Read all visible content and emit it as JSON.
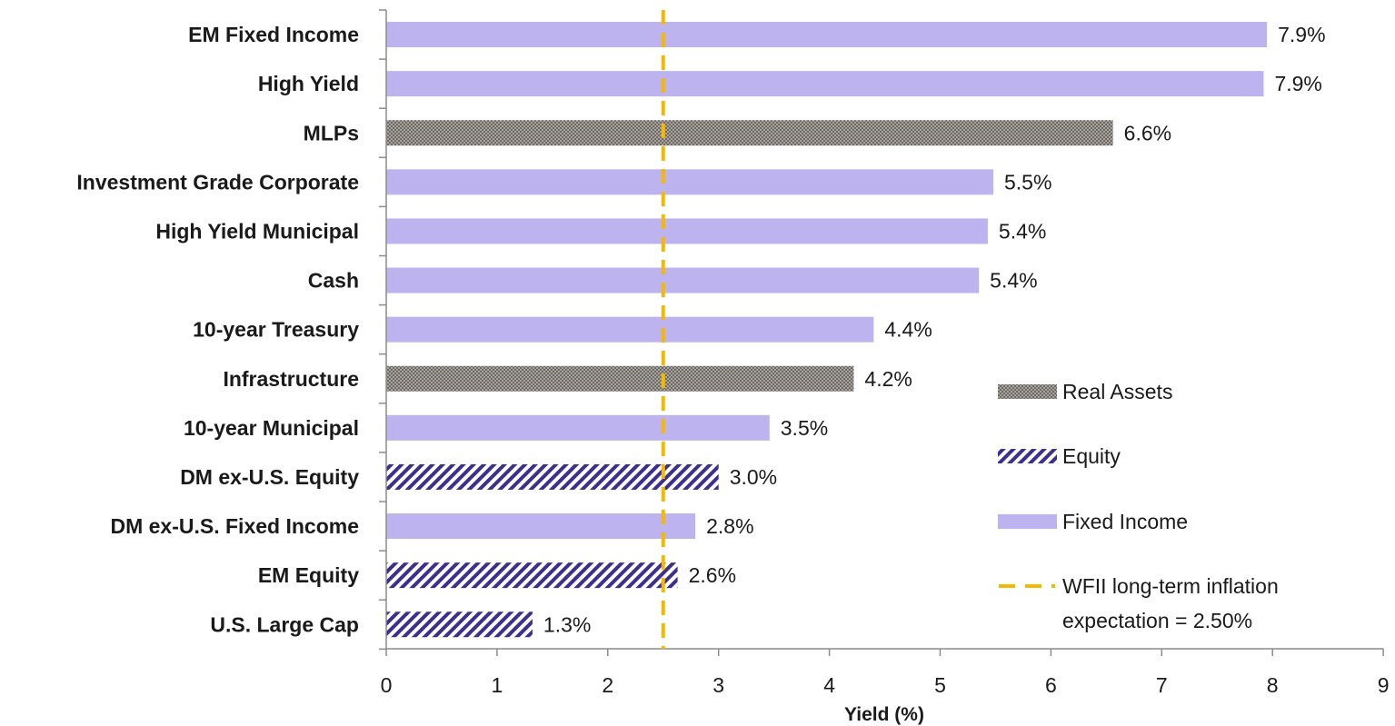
{
  "chart_data": {
    "type": "bar",
    "orientation": "horizontal",
    "xlabel": "Yield (%)",
    "xlim": [
      0,
      9
    ],
    "xticks": [
      0,
      1,
      2,
      3,
      4,
      5,
      6,
      7,
      8,
      9
    ],
    "grid": false,
    "legend_position": "bottom-right",
    "categories": [
      "EM Fixed Income",
      "High Yield",
      "MLPs",
      "Investment Grade Corporate",
      "High Yield Municipal",
      "Cash",
      "10-year Treasury",
      "Infrastructure",
      "10-year Municipal",
      "DM ex-U.S. Equity",
      "DM ex-U.S. Fixed Income",
      "EM Equity",
      "U.S. Large Cap"
    ],
    "values": [
      7.95,
      7.92,
      6.56,
      5.48,
      5.43,
      5.35,
      4.4,
      4.22,
      3.46,
      3.0,
      2.79,
      2.63,
      1.32
    ],
    "data_labels": [
      "7.9%",
      "7.9%",
      "6.6%",
      "5.5%",
      "5.4%",
      "5.4%",
      "4.4%",
      "4.2%",
      "3.5%",
      "3.0%",
      "2.8%",
      "2.6%",
      "1.3%"
    ],
    "groups": [
      "Fixed Income",
      "Fixed Income",
      "Real Assets",
      "Fixed Income",
      "Fixed Income",
      "Fixed Income",
      "Fixed Income",
      "Real Assets",
      "Fixed Income",
      "Equity",
      "Fixed Income",
      "Equity",
      "Equity"
    ],
    "series": [
      {
        "name": "Real Assets",
        "pattern": "checker",
        "color": "#8a8580"
      },
      {
        "name": "Equity",
        "pattern": "diagonal-hatch",
        "color": "#3d2f8f"
      },
      {
        "name": "Fixed Income",
        "pattern": "solid",
        "color": "#bdb3ef"
      }
    ],
    "reference_line": {
      "value": 2.5,
      "label_line1": "WFII long-term inflation",
      "label_line2": "expectation = 2.50%",
      "color": "#f5b800",
      "style": "dashed"
    }
  }
}
